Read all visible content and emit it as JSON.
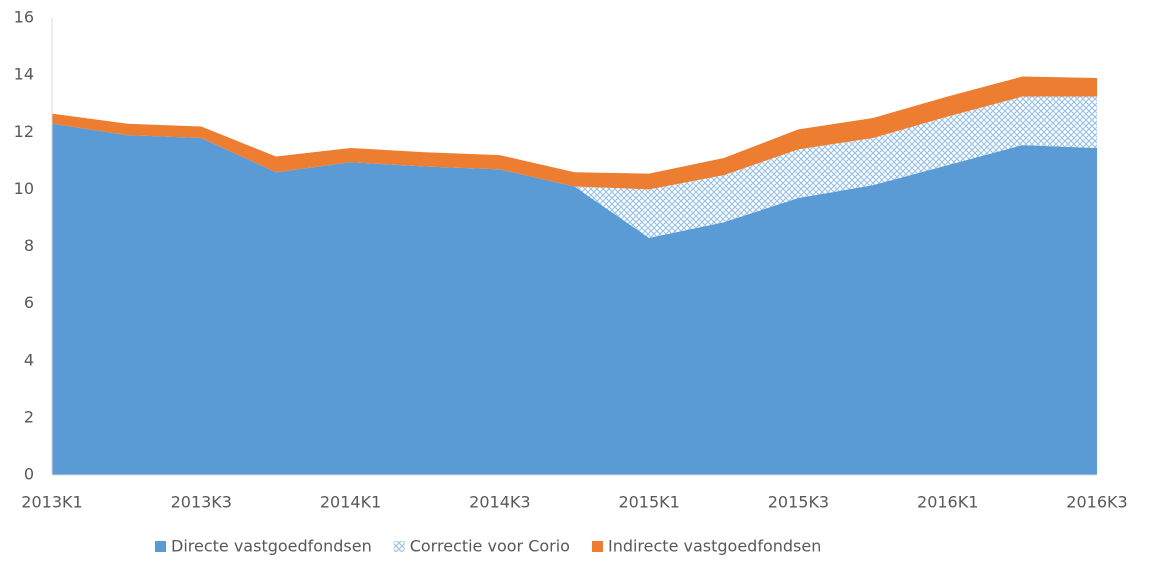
{
  "chart_data": {
    "type": "stacked_area",
    "categories": [
      "2013K1",
      null,
      "2013K3",
      null,
      "2014K1",
      null,
      "2014K3",
      null,
      "2015K1",
      null,
      "2015K3",
      null,
      "2016K1",
      null,
      "2016K3"
    ],
    "series": [
      {
        "name": "Directe vastgoedfondsen",
        "color": "#5b9bd5",
        "values": [
          12.3,
          11.9,
          11.8,
          10.6,
          10.95,
          10.8,
          10.7,
          10.1,
          8.3,
          8.85,
          9.7,
          10.15,
          10.85,
          11.55,
          11.45
        ]
      },
      {
        "name": "Correctie voor Corio",
        "color": "#9dc3e6",
        "pattern": "crosshatch",
        "values": [
          0,
          0,
          0,
          0,
          0,
          0,
          0,
          0,
          1.7,
          1.65,
          1.7,
          1.65,
          1.7,
          1.7,
          1.8
        ]
      },
      {
        "name": "Indirecte vastgoedfondsen",
        "color": "#ed7d31",
        "values": [
          0.35,
          0.4,
          0.4,
          0.55,
          0.5,
          0.5,
          0.5,
          0.5,
          0.55,
          0.6,
          0.7,
          0.7,
          0.7,
          0.7,
          0.65
        ]
      }
    ],
    "ylim": [
      0,
      16
    ],
    "yticks": [
      0,
      2,
      4,
      6,
      8,
      10,
      12,
      14,
      16
    ],
    "grid": false,
    "legend": "bottom"
  }
}
